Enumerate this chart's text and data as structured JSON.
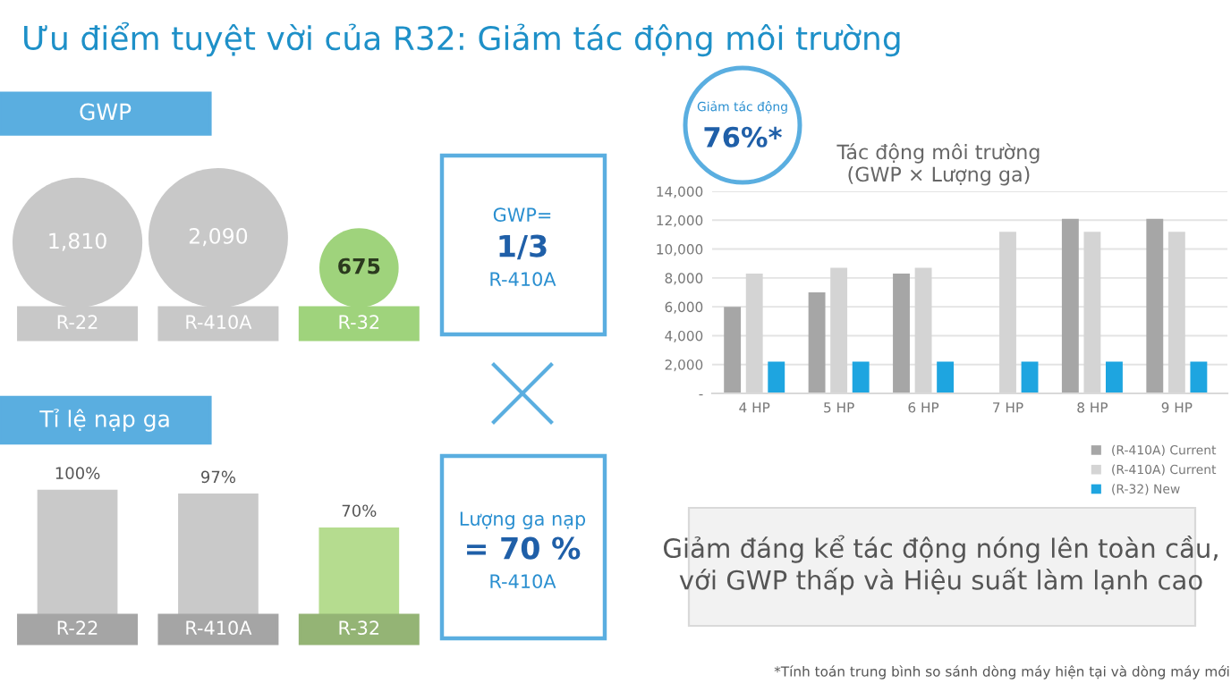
{
  "chart_data": [
    {
      "type": "other",
      "title": "Ưu điểm tuyệt vời của R32: Giảm tác động môi trường",
      "annotations": [
        "GWP=",
        "1/3",
        "R-410A",
        "Lượng ga nạp",
        "= 70 %",
        "R-410A",
        "Giảm tác động",
        "76%*",
        "Giảm đáng kể tác động nóng lên toàn cầu,\nvới GWP thấp và Hiệu suất làm lạnh cao",
        "*Tính toán trung bình so sánh dòng máy hiện tại và dòng máy mới"
      ]
    },
    {
      "type": "other",
      "title": "GWP",
      "categories": [
        "R-22",
        "R-410A",
        "R-32"
      ],
      "values": [
        1810,
        2090,
        675
      ],
      "colors": [
        "#c8c8c8",
        "#c8c8c8",
        "#9fd37c"
      ],
      "value_labels": [
        "1,810",
        "2,090",
        "675"
      ]
    },
    {
      "type": "bar",
      "title": "Tỉ lệ nạp ga",
      "categories": [
        "R-22",
        "R-410A",
        "R-32"
      ],
      "values": [
        100,
        97,
        70
      ],
      "colors": [
        "#c9c9c9",
        "#c9c9c9",
        "#b5dc8f"
      ],
      "value_labels": [
        "100%",
        "97%",
        "70%"
      ]
    },
    {
      "type": "bar",
      "title": "Tác động môi trường\n(GWP × Lượng ga)",
      "categories": [
        "4 HP",
        "5 HP",
        "6 HP",
        "7 HP",
        "8 HP",
        "9 HP"
      ],
      "series": [
        {
          "name": "(R-410A) Current",
          "color": "#a6a6a6",
          "values": [
            6000,
            7000,
            8300,
            null,
            12100,
            12100
          ]
        },
        {
          "name": "(R-410A) Current",
          "color": "#d4d4d4",
          "values": [
            8300,
            8700,
            8700,
            11200,
            11200,
            11200
          ]
        },
        {
          "name": "(R-32) New",
          "color": "#1ea5e0",
          "values": [
            2200,
            2200,
            2200,
            2200,
            2200,
            2200
          ]
        }
      ],
      "ylim": [
        0,
        14000
      ],
      "yticks": [
        {
          "value": 0,
          "label": "-"
        },
        {
          "value": 2000,
          "label": "2,000"
        },
        {
          "value": 4000,
          "label": "4,000"
        },
        {
          "value": 6000,
          "label": "6,000"
        },
        {
          "value": 8000,
          "label": "8,000"
        },
        {
          "value": 10000,
          "label": "10,000"
        },
        {
          "value": 12000,
          "label": "12,000"
        },
        {
          "value": 14000,
          "label": "14,000"
        }
      ],
      "grid": "y",
      "legend": "bottom right"
    }
  ]
}
